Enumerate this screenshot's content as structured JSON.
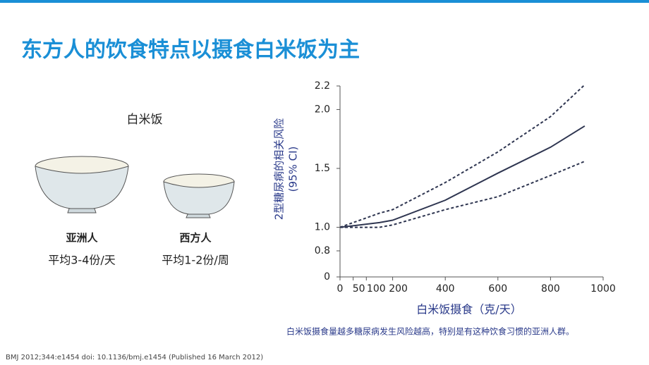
{
  "title": "东方人的饮食特点以摄食白米饭为主",
  "panel": {
    "heading": "白米饭",
    "bowls": [
      {
        "group": "亚洲人",
        "portion": "平均3-4份/天"
      },
      {
        "group": "西方人",
        "portion": "平均1-2份/周"
      }
    ]
  },
  "chart_data": {
    "type": "line",
    "ylabel": [
      "2型糖尿病的相关风险",
      "(95% CI)"
    ],
    "xlabel": "白米饭摄食（克/天）",
    "x": [
      0,
      150,
      200,
      400,
      600,
      800,
      930
    ],
    "series": [
      {
        "color": "#2e3550",
        "dash": "none",
        "values": [
          1.0,
          1.04,
          1.06,
          1.23,
          1.46,
          1.68,
          1.86
        ]
      },
      {
        "color": "#2e3550",
        "dash": "dotted",
        "values": [
          1.0,
          1.12,
          1.15,
          1.38,
          1.64,
          1.94,
          2.21
        ]
      },
      {
        "color": "#2e3550",
        "dash": "dotted",
        "values": [
          1.0,
          1.0,
          1.02,
          1.15,
          1.26,
          1.44,
          1.56
        ]
      }
    ],
    "xlim": [
      0,
      1000
    ],
    "xticks": [
      0,
      50,
      100,
      200,
      400,
      600,
      800,
      1000
    ],
    "ylim": [
      0,
      2.2
    ],
    "yticks": [
      0,
      {
        "value": 0.8,
        "label": "0.8"
      },
      {
        "value": 1.0,
        "label": "1.0"
      },
      1.5,
      {
        "value": 2.0,
        "label": "2.0"
      },
      2.2
    ]
  },
  "caption": "白米饭摄食量越多糖尿病发生风险越高，特别是有这种饮食习惯的亚洲人群。",
  "citation": "BMJ 2012;344:e1454 doi: 10.1136/bmj.e1454 (Published 16 March 2012)"
}
